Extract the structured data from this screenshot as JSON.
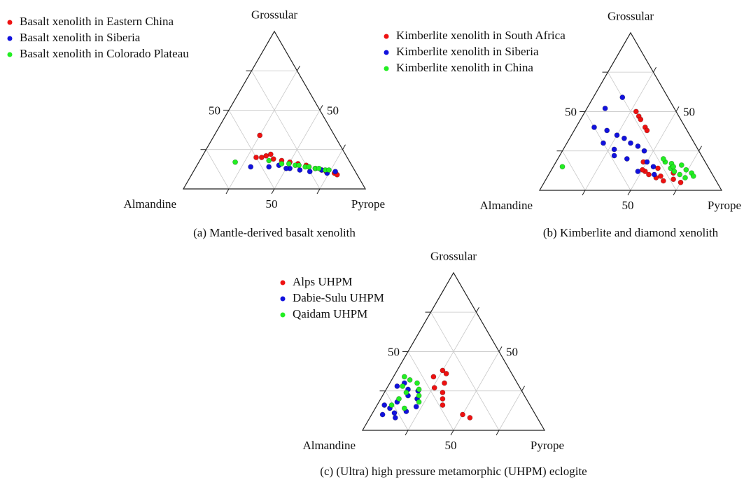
{
  "chart_data": [
    {
      "type": "ternary",
      "caption": "(a) Mantle-derived basalt xenolith",
      "axis_labels": {
        "top": "Grossular",
        "left": "Almandine",
        "right": "Pyrope"
      },
      "ticks": [
        50
      ],
      "gridlines": [
        25,
        50,
        75
      ],
      "series": [
        {
          "name": "Basalt xenolith in Eastern China",
          "color": "#ee1111",
          "grossular": [
            20,
            21,
            19,
            34,
            18,
            17,
            16,
            15,
            14,
            13,
            12,
            11,
            10,
            9,
            20,
            22
          ],
          "pyrope": [
            30,
            35,
            40,
            25,
            45,
            50,
            55,
            60,
            62,
            66,
            70,
            73,
            78,
            80,
            33,
            37
          ]
        },
        {
          "name": "Basalt xenolith in Siberia",
          "color": "#1111dd",
          "grossular": [
            14,
            15,
            13,
            12,
            11,
            12,
            10,
            11,
            13,
            14
          ],
          "pyrope": [
            30,
            45,
            52,
            58,
            64,
            70,
            74,
            78,
            50,
            40
          ]
        },
        {
          "name": "Basalt xenolith in Colorado Plateau",
          "color": "#22ee22",
          "grossular": [
            17,
            18,
            16,
            15,
            14,
            13,
            12,
            16,
            15,
            14,
            13,
            12
          ],
          "pyrope": [
            20,
            38,
            46,
            54,
            60,
            66,
            72,
            50,
            56,
            62,
            68,
            74
          ]
        }
      ]
    },
    {
      "type": "ternary",
      "caption": "(b) Kimberlite and diamond xenolith",
      "axis_labels": {
        "top": "Grossular",
        "left": "Almandine",
        "right": "Pyrope"
      },
      "ticks": [
        50
      ],
      "gridlines": [
        25,
        50,
        75
      ],
      "series": [
        {
          "name": "Kimberlite xenolith in South Africa",
          "color": "#ee1111",
          "grossular": [
            50,
            47,
            45,
            40,
            38,
            10,
            8,
            6,
            12,
            14,
            9,
            7,
            5,
            11,
            13,
            18
          ],
          "pyrope": [
            28,
            31,
            33,
            38,
            40,
            55,
            60,
            65,
            52,
            58,
            62,
            70,
            75,
            68,
            50,
            48
          ]
        },
        {
          "name": "Kimberlite xenolith in Siberia",
          "color": "#1111dd",
          "grossular": [
            59,
            52,
            40,
            38,
            35,
            33,
            30,
            28,
            25,
            22,
            20,
            18,
            15,
            12,
            10,
            30,
            26
          ],
          "pyrope": [
            16,
            10,
            10,
            18,
            25,
            30,
            35,
            40,
            45,
            30,
            38,
            50,
            55,
            48,
            58,
            20,
            28
          ]
        },
        {
          "name": "Kimberlite xenolith in China",
          "color": "#22ee22",
          "grossular": [
            15,
            18,
            14,
            12,
            10,
            8,
            16,
            13,
            11,
            9,
            20,
            17,
            15
          ],
          "pyrope": [
            5,
            60,
            65,
            68,
            72,
            76,
            70,
            74,
            78,
            80,
            58,
            64,
            66
          ]
        }
      ]
    },
    {
      "type": "ternary",
      "caption": "(c) (Ultra) high pressure metamorphic (UHPM) eclogite",
      "axis_labels": {
        "top": "Grossular",
        "left": "Almandine",
        "right": "Pyrope"
      },
      "ticks": [
        50
      ],
      "gridlines": [
        25,
        50,
        75
      ],
      "series": [
        {
          "name": "Alps UHPM",
          "color": "#ee1111",
          "grossular": [
            38,
            36,
            34,
            30,
            27,
            24,
            20,
            16,
            10,
            8
          ],
          "pyrope": [
            25,
            28,
            22,
            30,
            26,
            32,
            34,
            36,
            50,
            55
          ]
        },
        {
          "name": "Dabie-Sulu UHPM",
          "color": "#1111dd",
          "grossular": [
            30,
            26,
            22,
            18,
            14,
            10,
            8,
            25,
            20,
            15,
            12,
            28,
            16,
            11
          ],
          "pyrope": [
            8,
            12,
            14,
            10,
            8,
            6,
            14,
            18,
            20,
            22,
            18,
            5,
            4,
            12
          ]
        },
        {
          "name": "Qaidam UHPM",
          "color": "#22ee22",
          "grossular": [
            34,
            32,
            28,
            24,
            20,
            16,
            14,
            30,
            26,
            22,
            18
          ],
          "pyrope": [
            6,
            10,
            8,
            12,
            10,
            8,
            16,
            15,
            18,
            20,
            22
          ]
        }
      ]
    }
  ]
}
